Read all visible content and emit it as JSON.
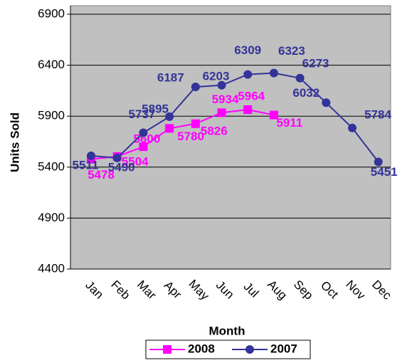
{
  "chart_data": {
    "type": "line",
    "x_label": "Month",
    "y_label": "Units Sold",
    "categories": [
      "Jan",
      "Feb",
      "Mar",
      "Apr",
      "May",
      "Jun",
      "Jul",
      "Aug",
      "Sep",
      "Oct",
      "Nov",
      "Dec"
    ],
    "series": [
      {
        "name": "2008",
        "color": "#ff00ff",
        "marker": "square",
        "values": [
          5478,
          5504,
          5600,
          5780,
          5826,
          5934,
          5964,
          5911,
          null,
          null,
          null,
          null
        ]
      },
      {
        "name": "2007",
        "color": "#333399",
        "marker": "circle",
        "values": [
          5511,
          5490,
          5737,
          5895,
          6187,
          6203,
          6309,
          6323,
          6273,
          6032,
          5784,
          5451
        ]
      }
    ],
    "ylim": [
      4400,
      6900
    ],
    "yticks": [
      4400,
      4900,
      5400,
      5900,
      6400,
      6900
    ],
    "grid": true,
    "legend": "bottom",
    "plot_background": "#c0c0c0"
  }
}
